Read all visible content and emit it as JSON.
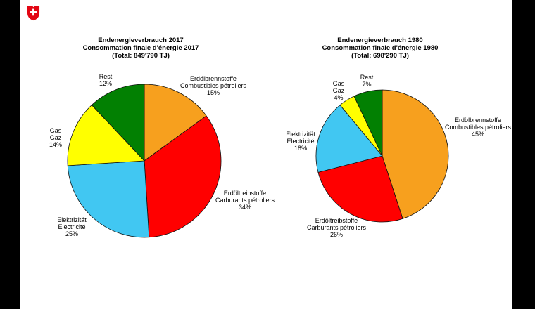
{
  "page": {
    "background": "#ffffff",
    "letterbox_color": "#000000"
  },
  "logo": {
    "name": "swiss-federal-coat-of-arms",
    "shield_color": "#e30613",
    "cross_color": "#ffffff"
  },
  "chart_data": [
    {
      "type": "pie",
      "title_lines": [
        "Endenergieverbrauch 2017",
        "Consommation finale d'énergie 2017",
        "(Total: 849'790 TJ)"
      ],
      "total": "849'790 TJ",
      "start_angle": "12-o'clock",
      "direction": "clockwise",
      "slices": [
        {
          "name_de": "Erdölbrennstoffe",
          "name_fr": "Combustibles pétroliers",
          "value": 15,
          "pct_label": "15%",
          "color": "#F7A01E"
        },
        {
          "name_de": "Erdöltreibstoffe",
          "name_fr": "Carburants pétroliers",
          "value": 34,
          "pct_label": "34%",
          "color": "#FF0000"
        },
        {
          "name_de": "Elektrizität",
          "name_fr": "Electricité",
          "value": 25,
          "pct_label": "25%",
          "color": "#41C7F2"
        },
        {
          "name_de": "Gas",
          "name_fr": "Gaz",
          "value": 14,
          "pct_label": "14%",
          "color": "#FFFF00"
        },
        {
          "name_de": "Rest",
          "value": 12,
          "pct_label": "12%",
          "color": "#028002"
        }
      ]
    },
    {
      "type": "pie",
      "title_lines": [
        "Endenergieverbrauch 1980",
        "Consommation finale d'énergie 1980",
        "(Total: 698'290 TJ)"
      ],
      "total": "698'290 TJ",
      "start_angle": "12-o'clock",
      "direction": "clockwise",
      "slices": [
        {
          "name_de": "Erdölbrennstoffe",
          "name_fr": "Combustibles pétroliers",
          "value": 45,
          "pct_label": "45%",
          "color": "#F7A01E"
        },
        {
          "name_de": "Erdöltreibstoffe",
          "name_fr": "Carburants pétroliers",
          "value": 26,
          "pct_label": "26%",
          "color": "#FF0000"
        },
        {
          "name_de": "Elektrizität",
          "name_fr": "Electricité",
          "value": 18,
          "pct_label": "18%",
          "color": "#41C7F2"
        },
        {
          "name_de": "Gas",
          "name_fr": "Gaz",
          "value": 4,
          "pct_label": "4%",
          "color": "#FFFF00"
        },
        {
          "name_de": "Rest",
          "value": 7,
          "pct_label": "7%",
          "color": "#028002"
        }
      ]
    }
  ]
}
